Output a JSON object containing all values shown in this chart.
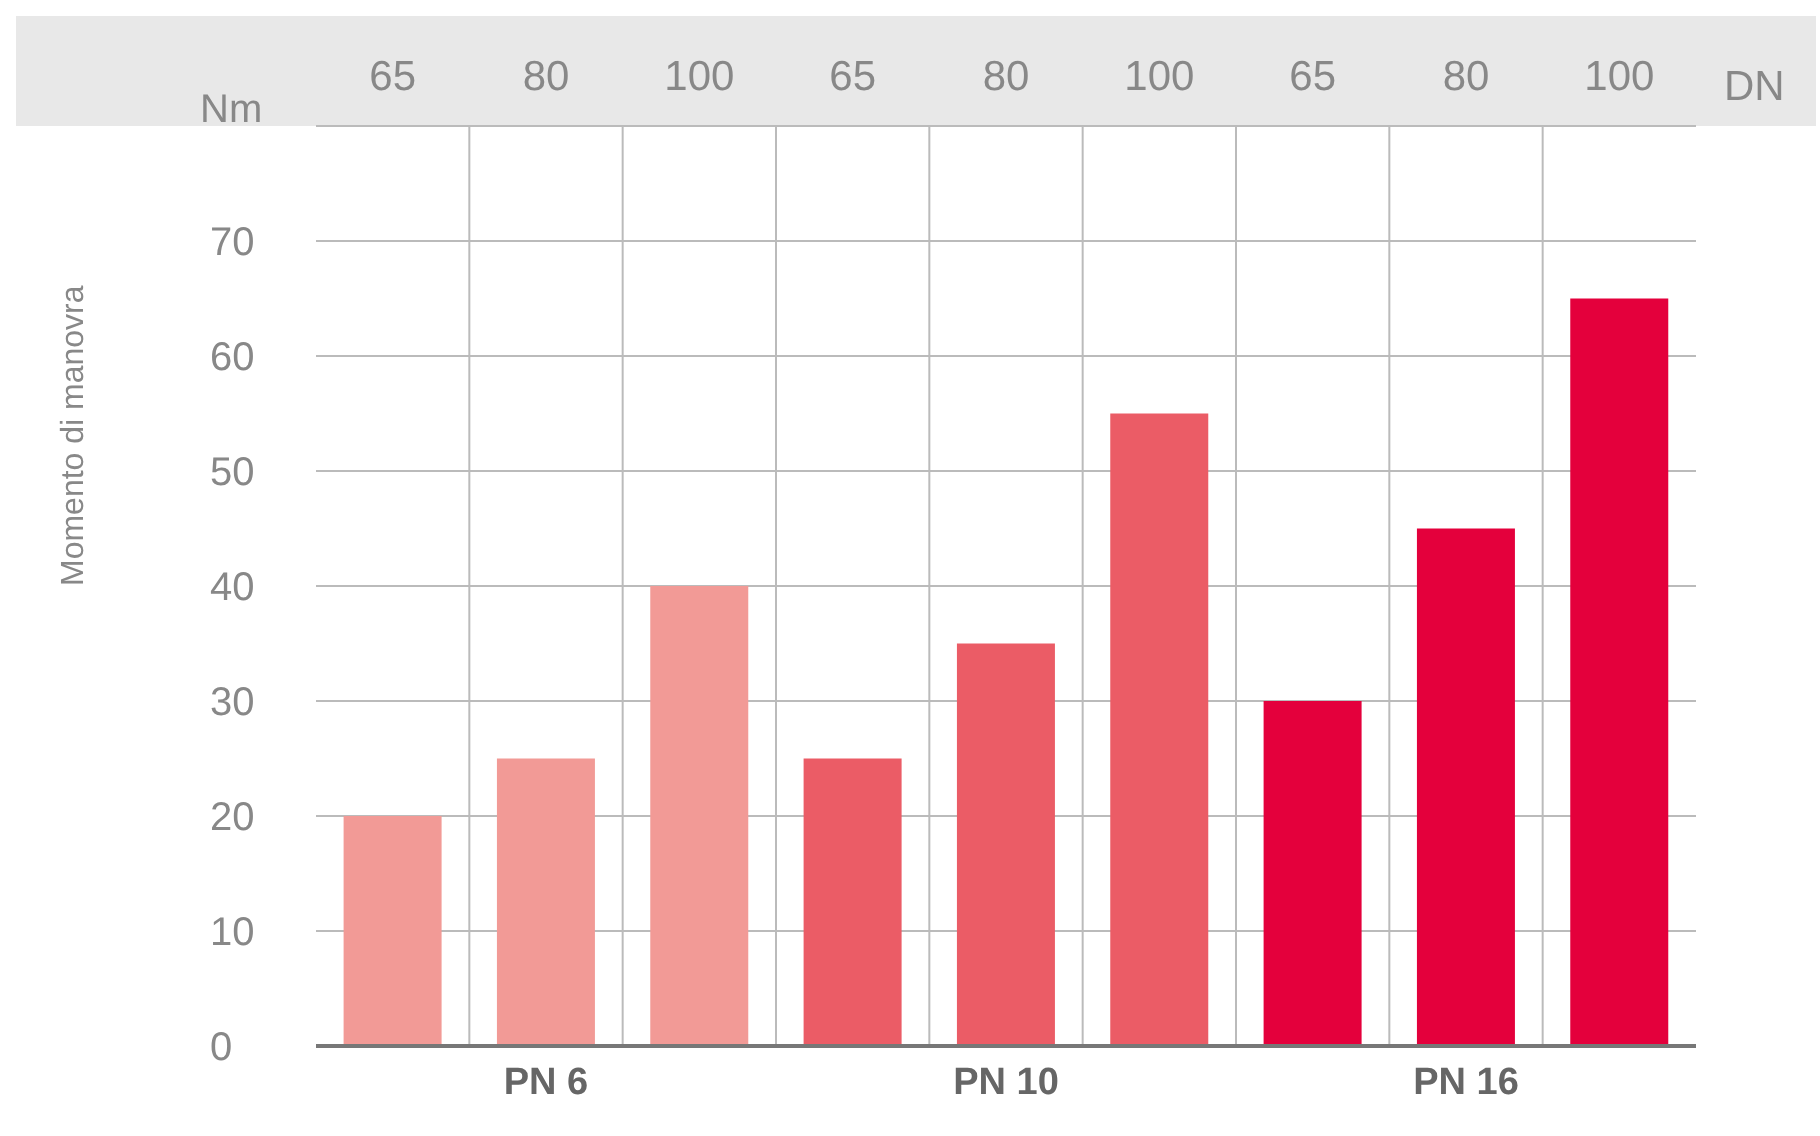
{
  "chart_data": {
    "type": "bar",
    "ylabel": "Momento di manovra",
    "xlabel": "DN",
    "annotations": [
      "Nm"
    ],
    "categories": [
      "65",
      "80",
      "100",
      "65",
      "80",
      "100",
      "65",
      "80",
      "100"
    ],
    "series": [
      {
        "name": "PN 6",
        "color": "#f29a96",
        "values": [
          20,
          25,
          40,
          null,
          null,
          null,
          null,
          null,
          null
        ]
      },
      {
        "name": "PN 10",
        "color": "#eb5c66",
        "values": [
          null,
          null,
          null,
          25,
          35,
          55,
          null,
          null,
          null
        ]
      },
      {
        "name": "PN 16",
        "color": "#e4003c",
        "values": [
          null,
          null,
          null,
          null,
          null,
          null,
          30,
          45,
          65
        ]
      }
    ],
    "ylim": [
      0,
      80
    ],
    "yticks": [
      0,
      10,
      20,
      30,
      40,
      50,
      60,
      70
    ],
    "grid": true
  }
}
